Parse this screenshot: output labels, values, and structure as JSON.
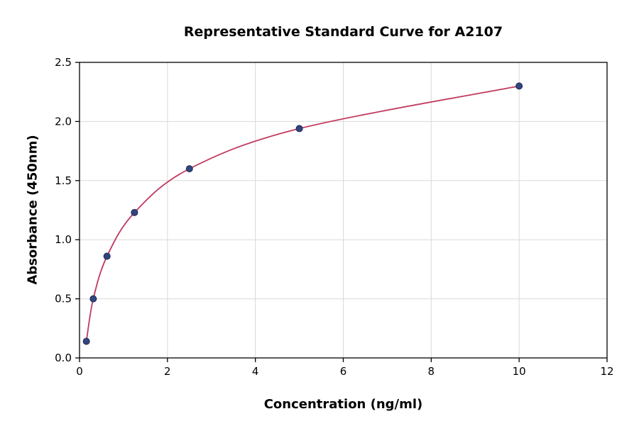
{
  "chart_data": {
    "type": "scatter",
    "title": "Representative Standard Curve for A2107",
    "xlabel": "Concentration (ng/ml)",
    "ylabel": "Absorbance (450nm)",
    "xlim": [
      0,
      12
    ],
    "ylim": [
      0,
      2.5
    ],
    "xticks": [
      0,
      2,
      4,
      6,
      8,
      10,
      12
    ],
    "xtick_labels": [
      "0",
      "2",
      "4",
      "6",
      "8",
      "10",
      "12"
    ],
    "yticks": [
      0,
      0.5,
      1.0,
      1.5,
      2.0,
      2.5
    ],
    "ytick_labels": [
      "0.0",
      "0.5",
      "1.0",
      "1.5",
      "2.0",
      "2.5"
    ],
    "grid": true,
    "legend": "none",
    "points": [
      {
        "x": 0.156,
        "y": 0.14
      },
      {
        "x": 0.313,
        "y": 0.5
      },
      {
        "x": 0.625,
        "y": 0.86
      },
      {
        "x": 1.25,
        "y": 1.23
      },
      {
        "x": 2.5,
        "y": 1.6
      },
      {
        "x": 5,
        "y": 1.94
      },
      {
        "x": 10,
        "y": 2.3
      }
    ],
    "colors": {
      "curve": "#c13a5e",
      "point_fill": "#33457e",
      "point_edge": "#1d2a55",
      "grid": "#d9d9d9",
      "axis": "#000000",
      "background": "#ffffff"
    }
  }
}
